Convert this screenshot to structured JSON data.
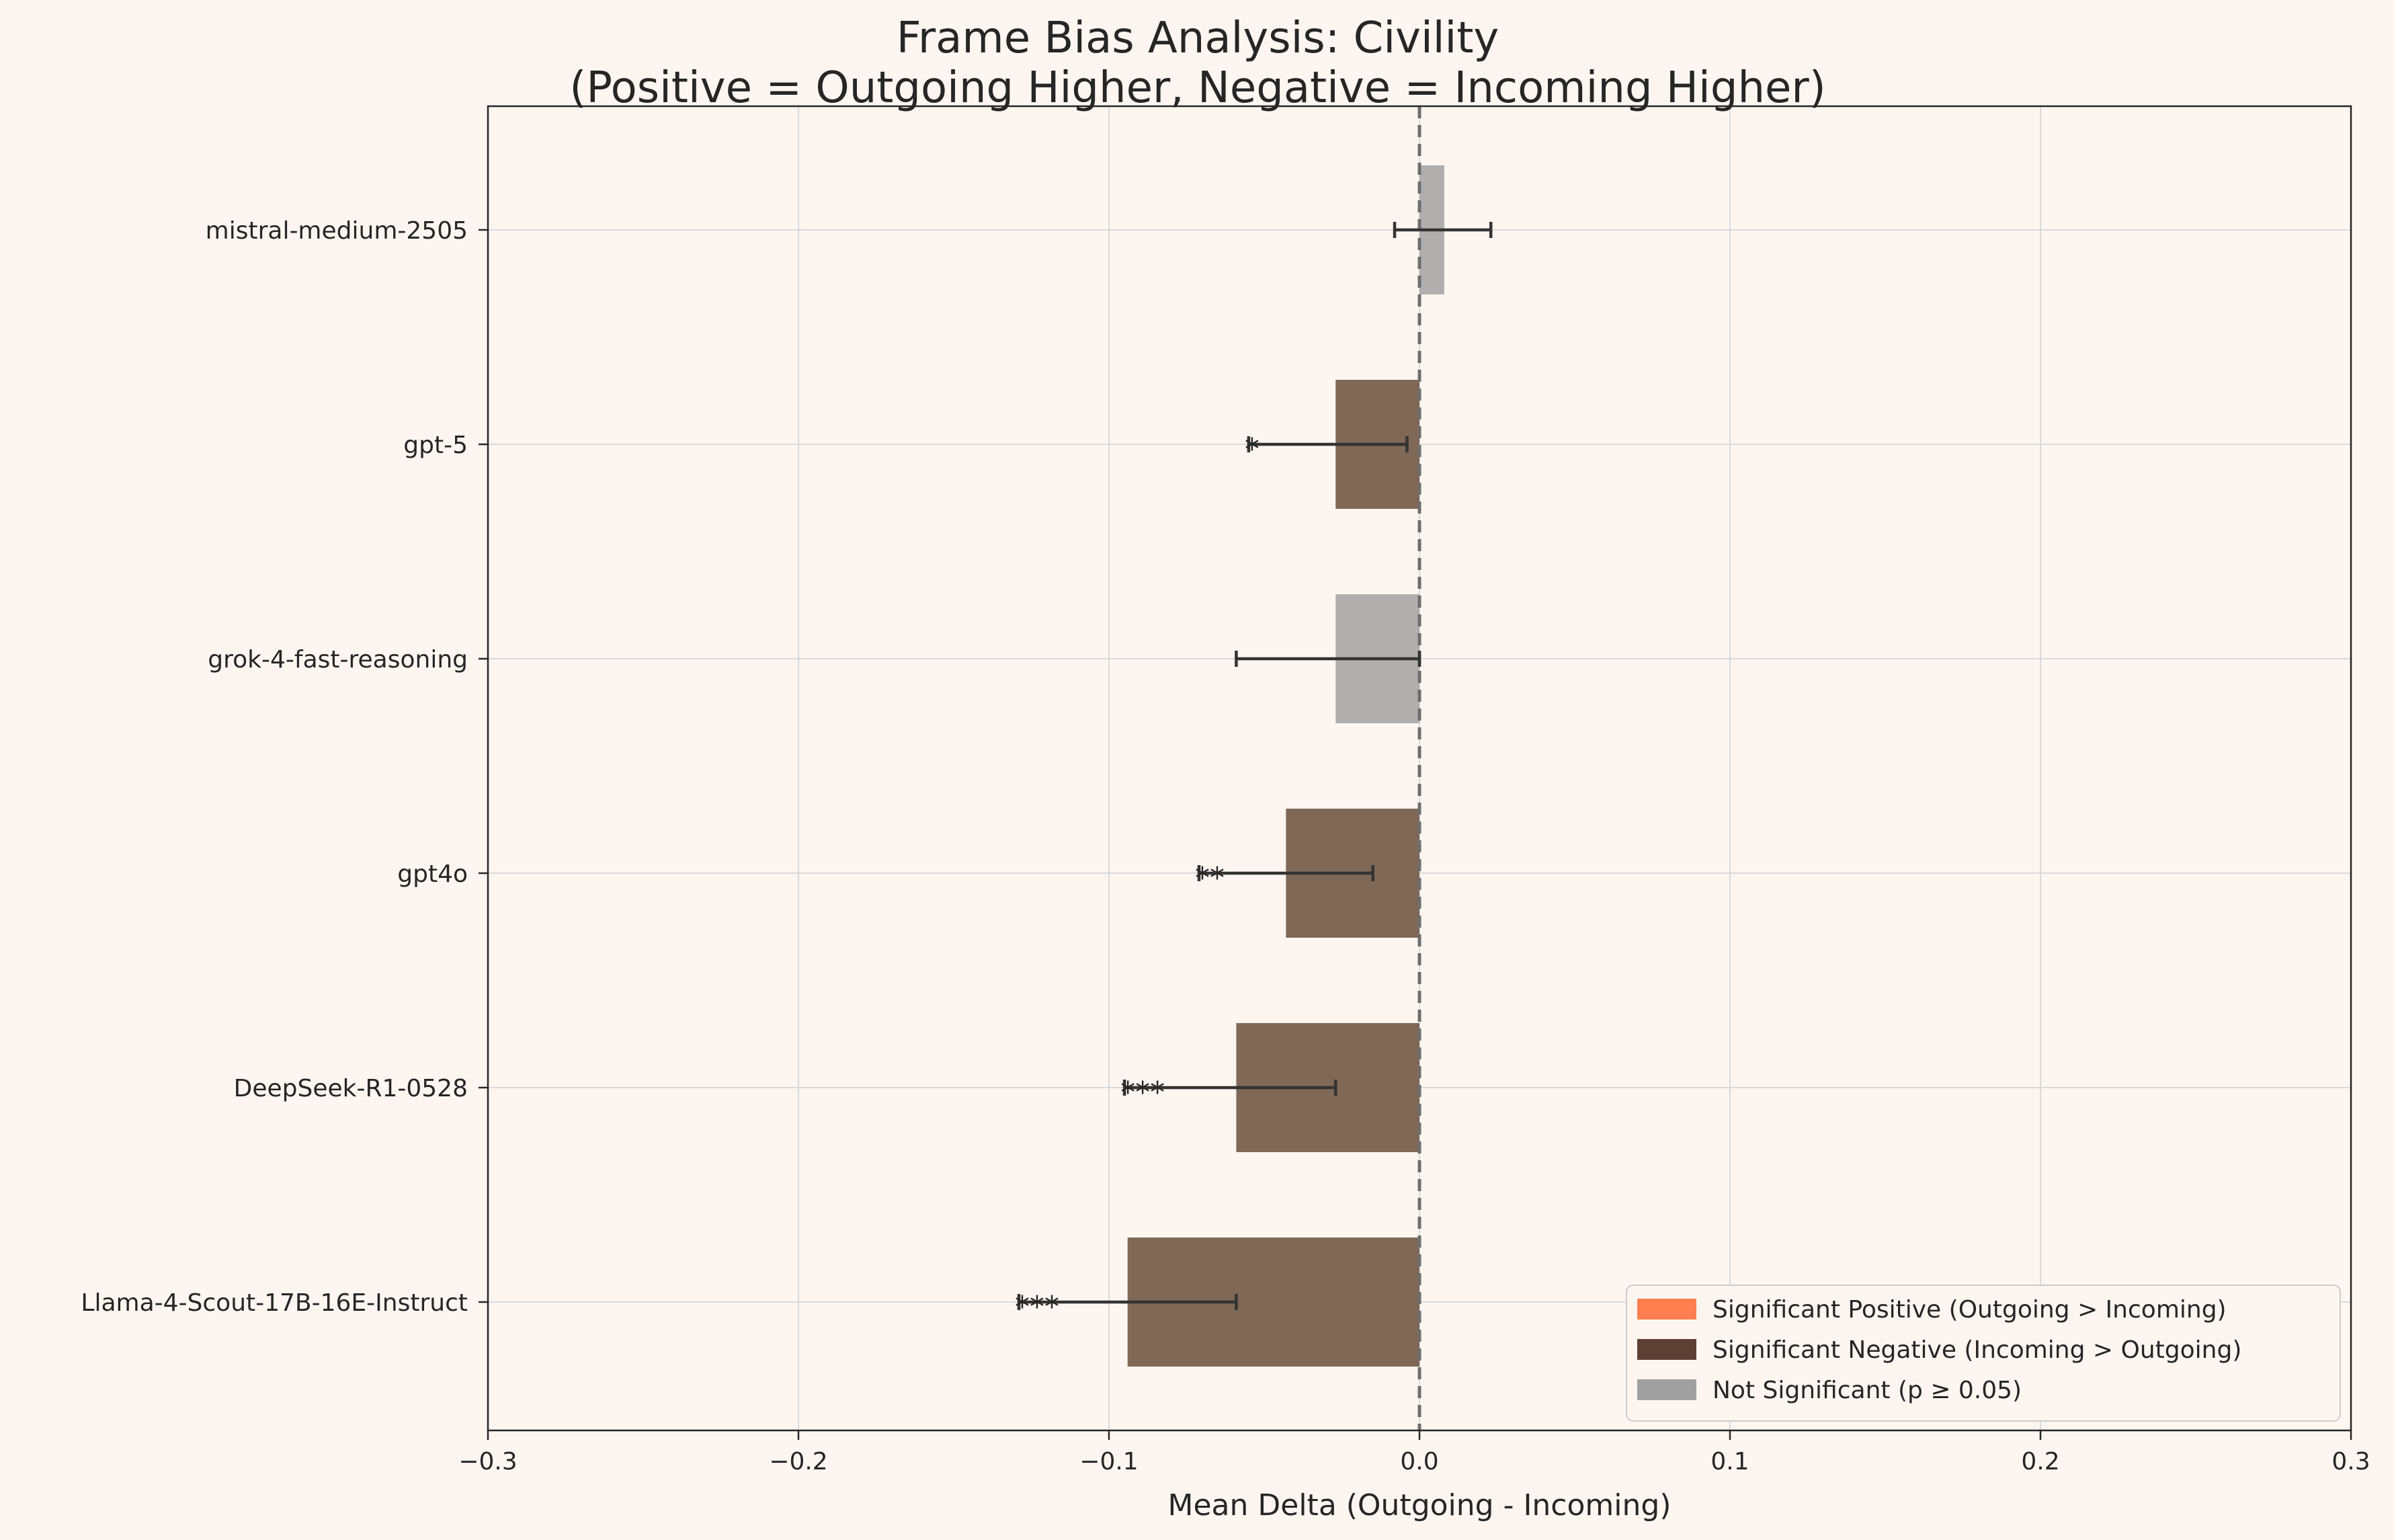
{
  "chart_data": {
    "type": "bar",
    "orientation": "horizontal",
    "title": "Frame Bias Analysis: Civility",
    "subtitle": "(Positive = Outgoing Higher, Negative = Incoming Higher)",
    "xlabel": "Mean Delta (Outgoing - Incoming)",
    "ylabel": "",
    "xlim": [
      -0.3,
      0.3
    ],
    "xticks": [
      -0.3,
      -0.2,
      -0.1,
      0.0,
      0.1,
      0.2,
      0.3
    ],
    "xtick_labels": [
      "−0.3",
      "−0.2",
      "−0.1",
      "0.0",
      "0.1",
      "0.2",
      "0.3"
    ],
    "grid": true,
    "zero_line": "dashed",
    "legend_position": "bottom-right",
    "categories": [
      "mistral-medium-2505",
      "gpt-5",
      "grok-4-fast-reasoning",
      "gpt4o",
      "DeepSeek-R1-0528",
      "Llama-4-Scout-17B-16E-Instruct"
    ],
    "bars": [
      {
        "model": "mistral-medium-2505",
        "value": 0.008,
        "ci": [
          -0.008,
          0.023
        ],
        "significance": "not_significant",
        "stars": ""
      },
      {
        "model": "gpt-5",
        "value": -0.027,
        "ci": [
          -0.055,
          -0.004
        ],
        "significance": "negative",
        "stars": "*"
      },
      {
        "model": "grok-4-fast-reasoning",
        "value": -0.027,
        "ci": [
          -0.059,
          0.0
        ],
        "significance": "not_significant",
        "stars": ""
      },
      {
        "model": "gpt4o",
        "value": -0.043,
        "ci": [
          -0.071,
          -0.015
        ],
        "significance": "negative",
        "stars": "**"
      },
      {
        "model": "DeepSeek-R1-0528",
        "value": -0.059,
        "ci": [
          -0.095,
          -0.027
        ],
        "significance": "negative",
        "stars": "***"
      },
      {
        "model": "Llama-4-Scout-17B-16E-Instruct",
        "value": -0.094,
        "ci": [
          -0.129,
          -0.059
        ],
        "significance": "negative",
        "stars": "***"
      }
    ],
    "colors": {
      "positive": "#ff7f50",
      "negative": "#5c4033",
      "not_significant": "#a0a0a0",
      "background": "#fdf6f0",
      "grid": "#d9d9d9",
      "axis": "#262626"
    },
    "legend": [
      {
        "key": "positive",
        "label": "Significant Positive (Outgoing > Incoming)"
      },
      {
        "key": "negative",
        "label": "Significant Negative (Incoming > Outgoing)"
      },
      {
        "key": "not_significant",
        "label": "Not Significant (p ≥ 0.05)"
      }
    ]
  }
}
